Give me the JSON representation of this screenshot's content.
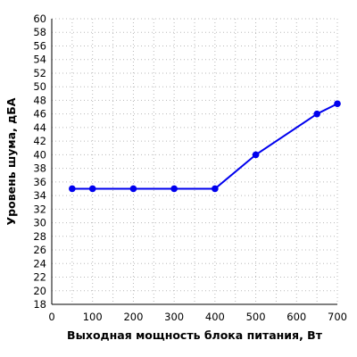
{
  "chart_data": {
    "type": "line",
    "title": "",
    "xlabel": "Выходная мощность блока питания, Вт",
    "ylabel": "Уровень шума, дБА",
    "xlim": [
      0,
      700
    ],
    "ylim": [
      18,
      60
    ],
    "x_ticks": [
      0,
      100,
      200,
      300,
      400,
      500,
      600,
      700
    ],
    "y_ticks": [
      18,
      20,
      22,
      24,
      26,
      28,
      30,
      32,
      34,
      36,
      38,
      40,
      42,
      44,
      46,
      48,
      50,
      52,
      54,
      56,
      58,
      60
    ],
    "x_minor_step": 50,
    "y_step": 2,
    "grid": true,
    "legend": "none",
    "series": [
      {
        "color": "#0000ee",
        "x": [
          50,
          100,
          200,
          300,
          400,
          500,
          650,
          700
        ],
        "y": [
          35,
          35,
          35,
          35,
          35,
          40,
          46,
          47.5
        ]
      }
    ]
  }
}
